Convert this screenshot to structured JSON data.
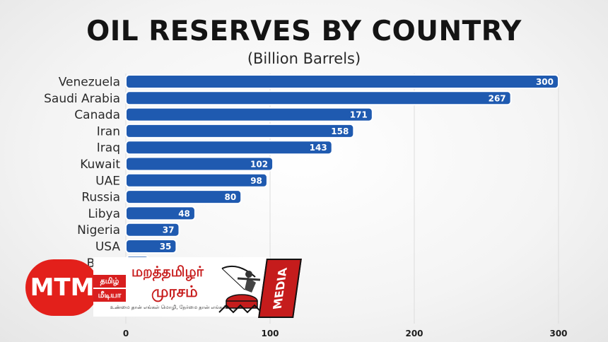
{
  "chart_data": {
    "type": "bar",
    "orientation": "horizontal",
    "title": "OIL RESERVES BY COUNTRY",
    "subtitle": "(Billion Barrels)",
    "categories": [
      "Venezuela",
      "Saudi Arabia",
      "Canada",
      "Iran",
      "Iraq",
      "Kuwait",
      "UAE",
      "Russia",
      "Libya",
      "Nigeria",
      "USA",
      "Brazil"
    ],
    "values": [
      300,
      267,
      171,
      158,
      143,
      102,
      98,
      80,
      48,
      37,
      35,
      16
    ],
    "xlim": [
      0,
      300
    ],
    "xticks": [
      0,
      100,
      200,
      300
    ],
    "grid": true,
    "bar_color": "#1f5ab0"
  },
  "watermark": {
    "logo_text": "MTM",
    "tag_1": "தமிழ்",
    "tag_2": "மீடியா",
    "brand_line_1": "மறத்தமிழர்",
    "brand_line_2": "முரசம்",
    "tagline": "உண்மை தான் எங்கள் மொழி, நேர்மை தான் எங்கள் வழி..!",
    "media_label": "MEDIA",
    "accent_color": "#e3201b"
  }
}
